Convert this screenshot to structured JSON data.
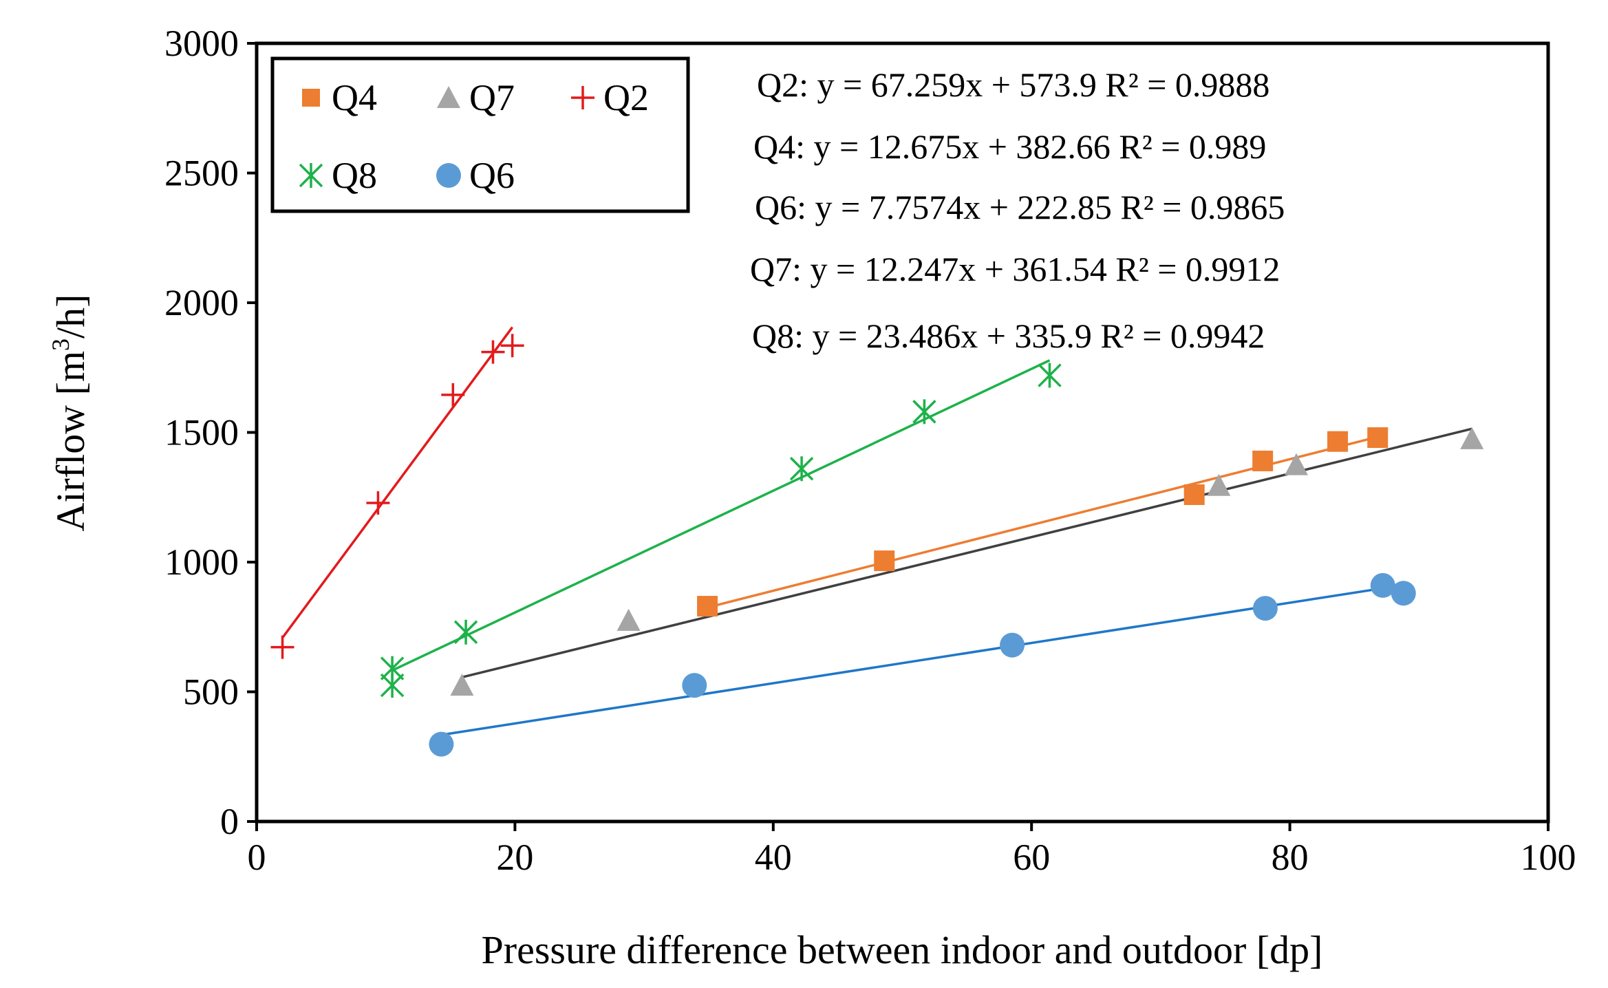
{
  "chart_data": {
    "type": "scatter",
    "xlabel": "Pressure difference between indoor and outdoor [dp]",
    "ylabel_main": "Airflow [m",
    "ylabel_sup": "3",
    "ylabel_end": "/h]",
    "xlim": [
      0,
      100
    ],
    "ylim": [
      0,
      3000
    ],
    "xticks": [
      "0",
      "20",
      "40",
      "60",
      "80",
      "100"
    ],
    "yticks": [
      "0",
      "500",
      "1000",
      "1500",
      "2000",
      "2500",
      "3000"
    ],
    "legend_position": "top-left",
    "series": [
      {
        "name": "Q4",
        "color": "#ED7D31",
        "marker": "square",
        "x": [
          34.9,
          48.6,
          72.6,
          77.9,
          83.7,
          86.8
        ],
        "y": [
          830,
          1005,
          1260,
          1390,
          1465,
          1480
        ],
        "fit": {
          "slope": 12.675,
          "intercept": 382.66,
          "x_range": [
            34.9,
            86.8
          ]
        },
        "equation": "Q4: y = 12.675x + 382.66 R² = 0.989"
      },
      {
        "name": "Q7",
        "color": "#A5A5A5",
        "marker": "triangle",
        "fit_color": "#404040",
        "x": [
          15.9,
          28.8,
          74.5,
          80.5,
          94.1
        ],
        "y": [
          525,
          775,
          1295,
          1375,
          1475
        ],
        "fit": {
          "slope": 12.247,
          "intercept": 361.54,
          "x_range": [
            15.9,
            94.1
          ]
        },
        "equation": "Q7: y = 12.247x + 361.54 R² = 0.9912"
      },
      {
        "name": "Q2",
        "color": "#E31A1C",
        "marker": "plus",
        "x": [
          2.0,
          9.4,
          15.2,
          18.3,
          19.8
        ],
        "y": [
          672,
          1228,
          1645,
          1810,
          1835
        ],
        "fit": {
          "slope": 67.259,
          "intercept": 573.9,
          "x_range": [
            2.0,
            19.8
          ]
        },
        "equation": "Q2: y = 67.259x + 573.9  R² = 0.9888"
      },
      {
        "name": "Q8",
        "color": "#1DB24A",
        "marker": "asterisk",
        "x": [
          10.5,
          10.5,
          16.2,
          42.2,
          51.7,
          61.4
        ],
        "y": [
          525,
          590,
          730,
          1360,
          1580,
          1720
        ],
        "fit": {
          "slope": 23.486,
          "intercept": 335.9,
          "x_range": [
            10.5,
            61.4
          ]
        },
        "equation": "Q8: y = 23.486x + 335.9 R² = 0.9942"
      },
      {
        "name": "Q6",
        "color": "#5B9BD5",
        "marker": "circle",
        "fit_color": "#1F77C8",
        "x": [
          14.3,
          33.9,
          58.5,
          78.1,
          87.2,
          88.8
        ],
        "y": [
          298,
          525,
          680,
          822,
          910,
          880
        ],
        "fit": {
          "slope": 7.7574,
          "intercept": 222.85,
          "x_range": [
            14.3,
            88.8
          ]
        },
        "equation": "Q6: y = 7.7574x + 222.85 R² = 0.9865"
      }
    ],
    "legend_order": [
      "Q4",
      "Q7",
      "Q2",
      "Q8",
      "Q6"
    ],
    "equation_order": [
      "Q2",
      "Q4",
      "Q6",
      "Q7",
      "Q8"
    ]
  }
}
